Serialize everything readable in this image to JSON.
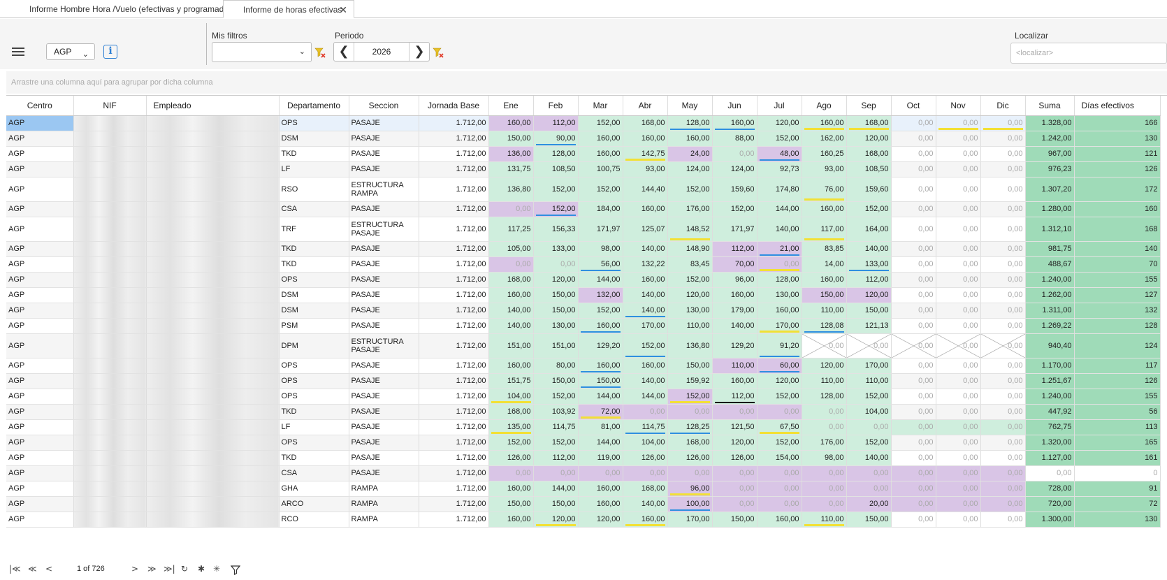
{
  "tabs": [
    {
      "label": "Informe Hombre Hora /Vuelo (efectivas y programadas)"
    },
    {
      "label": "Informe de horas efectivas",
      "close": "✕"
    }
  ],
  "toolbar": {
    "center_value": "AGP",
    "filters_label": "Mis filtros",
    "filters_value": "",
    "period_label": "Periodo",
    "period_value": "2026",
    "search_label": "Localizar",
    "search_placeholder": "<localizar>"
  },
  "group_hint": "Arrastre una columna aquí para agrupar por dicha columna",
  "grid": {
    "headers": [
      "Centro",
      "NIF",
      "Empleado",
      "Departamento",
      "Seccion",
      "Jornada Base",
      "Ene",
      "Feb",
      "Mar",
      "Abr",
      "May",
      "Jun",
      "Jul",
      "Ago",
      "Sep",
      "Oct",
      "Nov",
      "Dic",
      "Suma",
      "Días efectivos"
    ],
    "rows": [
      {
        "c": "AGP",
        "d": "OPS",
        "s": "PASAJE",
        "j": "1.712,00",
        "m": [
          "160,00",
          "112,00",
          "152,00",
          "168,00",
          "128,00",
          "160,00",
          "120,00",
          "160,00",
          "168,00",
          "0,00",
          "0,00",
          "0,00"
        ],
        "st": "ppggggggg zzz",
        "u": "..  bb..   ",
        "sum": "1.328,00",
        "dias": "166"
      },
      {
        "c": "AGP",
        "d": "DSM",
        "s": "PASAJE",
        "j": "1.712,00",
        "m": [
          "150,00",
          "90,00",
          "160,00",
          "160,00",
          "160,00",
          "88,00",
          "152,00",
          "162,00",
          "120,00",
          "0,00",
          "0,00",
          "0,00"
        ],
        "sum": "1.242,00",
        "dias": "130"
      },
      {
        "c": "AGP",
        "d": "TKD",
        "s": "PASAJE",
        "j": "1.712,00",
        "m": [
          "136,00",
          "128,00",
          "160,00",
          "142,75",
          "24,00",
          "0,00",
          "48,00",
          "160,25",
          "168,00",
          "0,00",
          "0,00",
          "0,00"
        ],
        "sum": "967,00",
        "dias": "121"
      },
      {
        "c": "AGP",
        "d": "LF",
        "s": "PASAJE",
        "j": "1.712,00",
        "m": [
          "131,75",
          "108,50",
          "100,75",
          "93,00",
          "124,00",
          "124,00",
          "92,73",
          "93,00",
          "108,50",
          "0,00",
          "0,00",
          "0,00"
        ],
        "sum": "976,23",
        "dias": "126"
      },
      {
        "c": "AGP",
        "d": "RSO",
        "s": "ESTRUCTURA RAMPA",
        "j": "1.712,00",
        "m": [
          "136,80",
          "152,00",
          "152,00",
          "144,40",
          "152,00",
          "159,60",
          "174,80",
          "76,00",
          "159,60",
          "0,00",
          "0,00",
          "0,00"
        ],
        "sum": "1.307,20",
        "dias": "172"
      },
      {
        "c": "AGP",
        "d": "CSA",
        "s": "PASAJE",
        "j": "1.712,00",
        "m": [
          "0,00",
          "152,00",
          "184,00",
          "160,00",
          "176,00",
          "152,00",
          "144,00",
          "160,00",
          "152,00",
          "0,00",
          "0,00",
          "0,00"
        ],
        "sum": "1.280,00",
        "dias": "160"
      },
      {
        "c": "AGP",
        "d": "TRF",
        "s": "ESTRUCTURA PASAJE",
        "j": "1.712,00",
        "m": [
          "117,25",
          "156,33",
          "171,97",
          "125,07",
          "148,52",
          "171,97",
          "140,00",
          "117,00",
          "164,00",
          "0,00",
          "0,00",
          "0,00"
        ],
        "sum": "1.312,10",
        "dias": "168"
      },
      {
        "c": "AGP",
        "d": "TKD",
        "s": "PASAJE",
        "j": "1.712,00",
        "m": [
          "105,00",
          "133,00",
          "98,00",
          "140,00",
          "148,90",
          "112,00",
          "21,00",
          "83,85",
          "140,00",
          "0,00",
          "0,00",
          "0,00"
        ],
        "sum": "981,75",
        "dias": "140"
      },
      {
        "c": "AGP",
        "d": "TKD",
        "s": "PASAJE",
        "j": "1.712,00",
        "m": [
          "0,00",
          "0,00",
          "56,00",
          "132,22",
          "83,45",
          "70,00",
          "0,00",
          "14,00",
          "133,00",
          "0,00",
          "0,00",
          "0,00"
        ],
        "sum": "488,67",
        "dias": "70"
      },
      {
        "c": "AGP",
        "d": "OPS",
        "s": "PASAJE",
        "j": "1.712,00",
        "m": [
          "168,00",
          "120,00",
          "144,00",
          "160,00",
          "152,00",
          "96,00",
          "128,00",
          "160,00",
          "112,00",
          "0,00",
          "0,00",
          "0,00"
        ],
        "sum": "1.240,00",
        "dias": "155"
      },
      {
        "c": "AGP",
        "d": "DSM",
        "s": "PASAJE",
        "j": "1.712,00",
        "m": [
          "160,00",
          "150,00",
          "132,00",
          "140,00",
          "120,00",
          "160,00",
          "130,00",
          "150,00",
          "120,00",
          "0,00",
          "0,00",
          "0,00"
        ],
        "sum": "1.262,00",
        "dias": "127"
      },
      {
        "c": "AGP",
        "d": "DSM",
        "s": "PASAJE",
        "j": "1.712,00",
        "m": [
          "140,00",
          "150,00",
          "152,00",
          "140,00",
          "130,00",
          "179,00",
          "160,00",
          "110,00",
          "150,00",
          "0,00",
          "0,00",
          "0,00"
        ],
        "sum": "1.311,00",
        "dias": "132"
      },
      {
        "c": "AGP",
        "d": "PSM",
        "s": "PASAJE",
        "j": "1.712,00",
        "m": [
          "140,00",
          "130,00",
          "160,00",
          "170,00",
          "110,00",
          "140,00",
          "170,00",
          "128,08",
          "121,13",
          "0,00",
          "0,00",
          "0,00"
        ],
        "sum": "1.269,22",
        "dias": "128"
      },
      {
        "c": "AGP",
        "d": "DPM",
        "s": "ESTRUCTURA PASAJE",
        "j": "1.712,00",
        "m": [
          "151,00",
          "151,00",
          "129,20",
          "152,00",
          "136,80",
          "129,20",
          "91,20",
          "0,00",
          "0,00",
          "0,00",
          "0,00",
          "0,00"
        ],
        "sum": "940,40",
        "dias": "124"
      },
      {
        "c": "AGP",
        "d": "OPS",
        "s": "PASAJE",
        "j": "1.712,00",
        "m": [
          "160,00",
          "80,00",
          "160,00",
          "160,00",
          "150,00",
          "110,00",
          "60,00",
          "120,00",
          "170,00",
          "0,00",
          "0,00",
          "0,00"
        ],
        "sum": "1.170,00",
        "dias": "117"
      },
      {
        "c": "AGP",
        "d": "OPS",
        "s": "PASAJE",
        "j": "1.712,00",
        "m": [
          "151,75",
          "150,00",
          "150,00",
          "140,00",
          "159,92",
          "160,00",
          "120,00",
          "110,00",
          "110,00",
          "0,00",
          "0,00",
          "0,00"
        ],
        "sum": "1.251,67",
        "dias": "126"
      },
      {
        "c": "AGP",
        "d": "OPS",
        "s": "PASAJE",
        "j": "1.712,00",
        "m": [
          "104,00",
          "152,00",
          "144,00",
          "144,00",
          "152,00",
          "112,00",
          "152,00",
          "128,00",
          "152,00",
          "0,00",
          "0,00",
          "0,00"
        ],
        "sum": "1.240,00",
        "dias": "155"
      },
      {
        "c": "AGP",
        "d": "TKD",
        "s": "PASAJE",
        "j": "1.712,00",
        "m": [
          "168,00",
          "103,92",
          "72,00",
          "0,00",
          "0,00",
          "0,00",
          "0,00",
          "0,00",
          "104,00",
          "0,00",
          "0,00",
          "0,00"
        ],
        "sum": "447,92",
        "dias": "56"
      },
      {
        "c": "AGP",
        "d": "LF",
        "s": "PASAJE",
        "j": "1.712,00",
        "m": [
          "135,00",
          "114,75",
          "81,00",
          "114,75",
          "128,25",
          "121,50",
          "67,50",
          "0,00",
          "0,00",
          "0,00",
          "0,00",
          "0,00"
        ],
        "sum": "762,75",
        "dias": "113"
      },
      {
        "c": "AGP",
        "d": "OPS",
        "s": "PASAJE",
        "j": "1.712,00",
        "m": [
          "152,00",
          "152,00",
          "144,00",
          "104,00",
          "168,00",
          "120,00",
          "152,00",
          "176,00",
          "152,00",
          "0,00",
          "0,00",
          "0,00"
        ],
        "sum": "1.320,00",
        "dias": "165"
      },
      {
        "c": "AGP",
        "d": "TKD",
        "s": "PASAJE",
        "j": "1.712,00",
        "m": [
          "126,00",
          "112,00",
          "119,00",
          "126,00",
          "126,00",
          "126,00",
          "154,00",
          "98,00",
          "140,00",
          "0,00",
          "0,00",
          "0,00"
        ],
        "sum": "1.127,00",
        "dias": "161"
      },
      {
        "c": "AGP",
        "d": "CSA",
        "s": "PASAJE",
        "j": "1.712,00",
        "m": [
          "0,00",
          "0,00",
          "0,00",
          "0,00",
          "0,00",
          "0,00",
          "0,00",
          "0,00",
          "0,00",
          "0,00",
          "0,00",
          "0,00"
        ],
        "sum": "0,00",
        "dias": "0"
      },
      {
        "c": "AGP",
        "d": "GHA",
        "s": "RAMPA",
        "j": "1.712,00",
        "m": [
          "160,00",
          "144,00",
          "160,00",
          "168,00",
          "96,00",
          "0,00",
          "0,00",
          "0,00",
          "0,00",
          "0,00",
          "0,00",
          "0,00"
        ],
        "sum": "728,00",
        "dias": "91"
      },
      {
        "c": "AGP",
        "d": "ARCO",
        "s": "RAMPA",
        "j": "1.712,00",
        "m": [
          "150,00",
          "150,00",
          "160,00",
          "140,00",
          "100,00",
          "0,00",
          "0,00",
          "0,00",
          "20,00",
          "0,00",
          "0,00",
          "0,00"
        ],
        "sum": "720,00",
        "dias": "72"
      },
      {
        "c": "AGP",
        "d": "RCO",
        "s": "RAMPA",
        "j": "1.712,00",
        "m": [
          "160,00",
          "120,00",
          "120,00",
          "160,00",
          "170,00",
          "150,00",
          "160,00",
          "110,00",
          "150,00",
          "0,00",
          "0,00",
          "0,00"
        ],
        "sum": "1.300,00",
        "dias": "130"
      }
    ],
    "cell_styles": [
      "ppggggggg...",
      "ggggggggg...",
      "pgggpgpgg...",
      "ggggggggg...",
      "ggggggggg...",
      "ppggggggg...",
      "ggggggggg...",
      "gggggppgg...",
      "pggggppgg...",
      "ggggggggg...",
      "ggpggggpp...",
      "ggggggggg...",
      "ggggggggg...",
      "gggggggxxxxx",
      "gggggppgg...",
      "ggggggggg...",
      "ggggpgggg...",
      "ggpppppgg...",
      "gggggggggggg",
      "ggggggggg...",
      "ggggggggg...",
      "pppppppppppp",
      "ggggpppppppp",
      "ggggpppppppp",
      "ggggggggg..."
    ],
    "underlines": [
      "...ubb.yy.yyy",
      ".b..........",
      "...y..b.....",
      "............",
      ".......y....",
      ".b..........",
      "....y..y....",
      "......b.....",
      "..b...y.b...",
      "............",
      "............",
      "...b........",
      "..b...yb....",
      "...b..b.....",
      "..b...b.....",
      "..b.........",
      "y...yk......",
      "..y.........",
      "y..bb.y.....",
      "............",
      "............",
      "............",
      "....y.......",
      "....b.......",
      ".y.y...y...."
    ]
  },
  "pager": {
    "info": "1 of 726"
  },
  "icons": [
    "menu-icon",
    "chevron-down-icon",
    "info-icon",
    "filter-clear-icon",
    "arrow-left-icon",
    "arrow-right-icon",
    "first-page-icon",
    "prev-page-icon",
    "next-page-icon",
    "last-page-icon",
    "refresh-icon",
    "asterisk-icon",
    "filter-icon"
  ]
}
